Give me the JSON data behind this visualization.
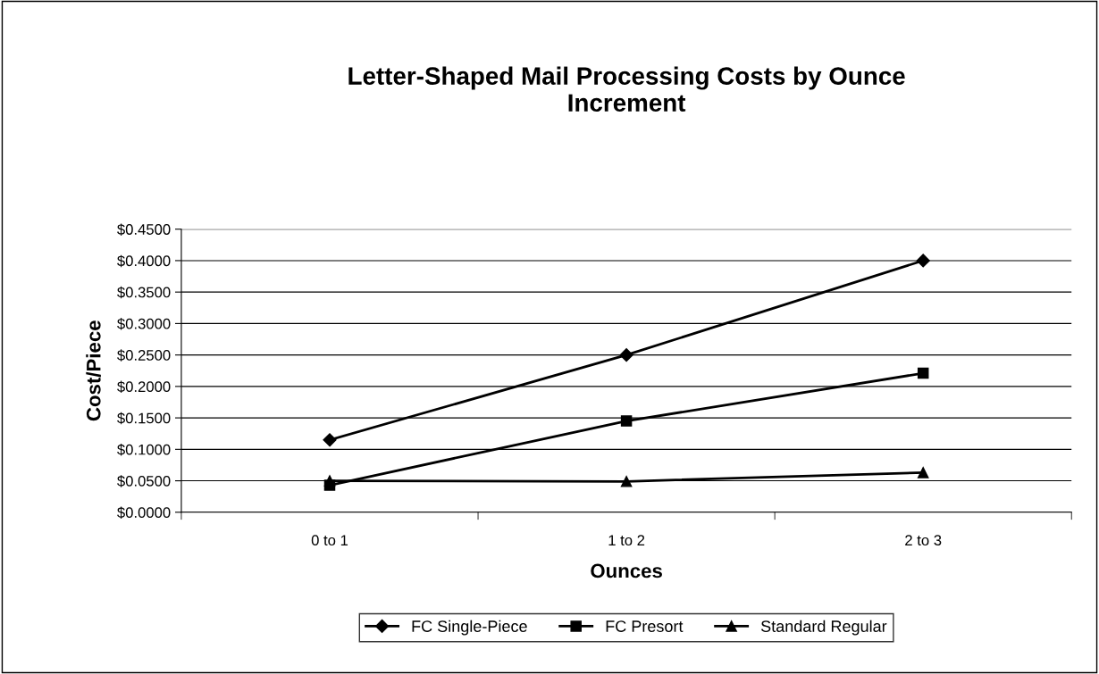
{
  "chart_data": {
    "type": "line",
    "title": "Letter-Shaped Mail Processing Costs by Ounce\nIncrement",
    "xlabel": "Ounces",
    "ylabel": "Cost/Piece",
    "categories": [
      "0 to 1",
      "1 to 2",
      "2 to 3"
    ],
    "series": [
      {
        "name": "FC Single-Piece",
        "color": "#000000",
        "marker": "diamond",
        "values": [
          0.115,
          0.25,
          0.4
        ]
      },
      {
        "name": "FC Presort",
        "color": "#000000",
        "marker": "square",
        "values": [
          0.043,
          0.145,
          0.221
        ]
      },
      {
        "name": "Standard Regular",
        "color": "#000000",
        "marker": "triangle",
        "values": [
          0.05,
          0.049,
          0.063
        ]
      }
    ],
    "ylim": [
      0,
      0.45
    ],
    "yticks": [
      {
        "value": 0,
        "label": "$0.0000"
      },
      {
        "value": 0.05,
        "label": "$0.0500"
      },
      {
        "value": 0.1,
        "label": "$0.1000"
      },
      {
        "value": 0.15,
        "label": "$0.1500"
      },
      {
        "value": 0.2,
        "label": "$0.2000"
      },
      {
        "value": 0.25,
        "label": "$0.2500"
      },
      {
        "value": 0.3,
        "label": "$0.3000"
      },
      {
        "value": 0.35,
        "label": "$0.3500"
      },
      {
        "value": 0.4,
        "label": "$0.4000"
      },
      {
        "value": 0.45,
        "label": "$0.4500"
      }
    ],
    "grid": "y",
    "legend": "bottom",
    "line_style": "solid"
  }
}
